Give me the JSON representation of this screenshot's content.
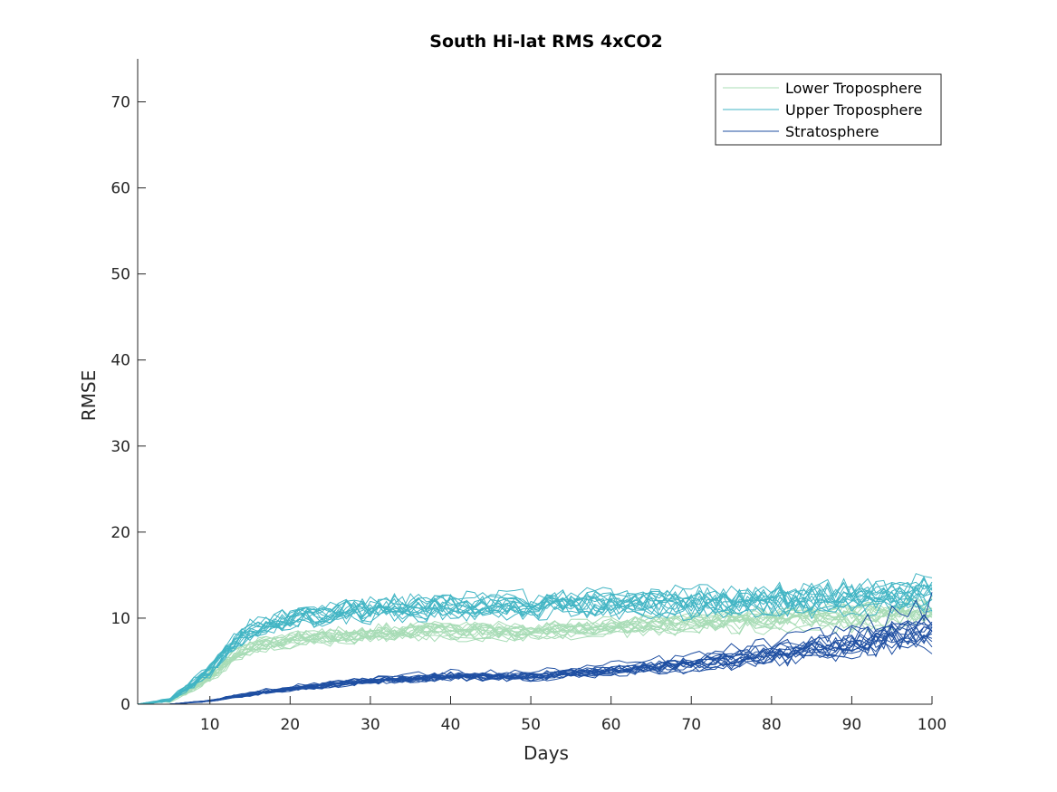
{
  "chart_data": {
    "type": "line",
    "title": "South Hi-lat RMS 4xCO2",
    "xlabel": "Days",
    "ylabel": "RMSE",
    "xlim": [
      1,
      100
    ],
    "ylim": [
      0,
      75
    ],
    "xticks": [
      10,
      20,
      30,
      40,
      50,
      60,
      70,
      80,
      90,
      100
    ],
    "yticks": [
      0,
      10,
      20,
      30,
      40,
      50,
      60,
      70
    ],
    "grid": false,
    "legend_position": "top-right",
    "ensemble_members_per_series": 16,
    "x": [
      1,
      5,
      10,
      13,
      15,
      20,
      25,
      30,
      40,
      50,
      60,
      70,
      80,
      90,
      100
    ],
    "series": [
      {
        "name": "Lower Troposphere",
        "color": "#a8dcb6",
        "values": [
          0,
          0.4,
          3.2,
          5.6,
          6.5,
          7.5,
          7.8,
          8.2,
          8.6,
          8.4,
          9.0,
          9.5,
          9.8,
          10.2,
          10.8
        ],
        "spread": [
          0,
          0.2,
          0.7,
          0.8,
          0.9,
          0.9,
          1.0,
          1.0,
          1.0,
          1.0,
          1.0,
          1.1,
          1.2,
          1.3,
          1.4
        ]
      },
      {
        "name": "Upper Troposphere",
        "color": "#42b5c4",
        "values": [
          0,
          0.5,
          4.0,
          7.2,
          8.7,
          10.0,
          10.8,
          11.0,
          11.5,
          11.5,
          11.7,
          11.8,
          11.9,
          12.4,
          12.8
        ],
        "spread": [
          0,
          0.2,
          0.8,
          1.0,
          1.1,
          1.2,
          1.3,
          1.4,
          1.4,
          1.5,
          1.5,
          1.6,
          1.6,
          1.6,
          1.7
        ]
      },
      {
        "name": "Stratosphere",
        "color": "#1f4fa2",
        "values": [
          0,
          0,
          0.4,
          0.9,
          1.2,
          1.8,
          2.3,
          2.8,
          3.3,
          3.3,
          4.0,
          4.8,
          6.0,
          7.3,
          9.2
        ],
        "spread": [
          0,
          0,
          0.1,
          0.2,
          0.3,
          0.3,
          0.4,
          0.4,
          0.5,
          0.5,
          0.6,
          0.8,
          1.1,
          1.5,
          2.0
        ]
      }
    ]
  }
}
